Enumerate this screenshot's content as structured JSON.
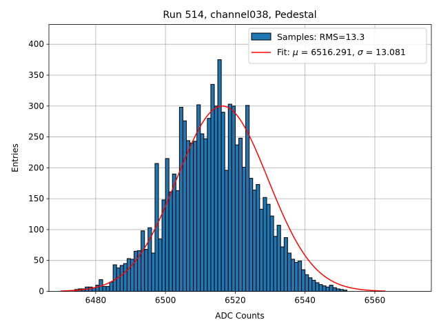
{
  "chart_data": {
    "type": "histogram",
    "title": "Run 514, channel038, Pedestal",
    "xlabel": "ADC Counts",
    "ylabel": "Entries",
    "xlim": [
      6466.6,
      6576.2
    ],
    "ylim": [
      0,
      432
    ],
    "grid": true,
    "legend_position": "top-right",
    "x_ticks": [
      6480,
      6500,
      6520,
      6540,
      6560
    ],
    "y_ticks": [
      0,
      50,
      100,
      150,
      200,
      250,
      300,
      350,
      400
    ],
    "bin_start": 6474,
    "bin_width": 1,
    "counts": [
      3,
      4,
      4,
      7,
      7,
      6,
      10,
      19,
      8,
      8,
      15,
      43,
      38,
      42,
      45,
      53,
      52,
      65,
      66,
      98,
      68,
      103,
      62,
      207,
      85,
      148,
      215,
      161,
      190,
      163,
      298,
      276,
      244,
      240,
      243,
      302,
      255,
      247,
      280,
      335,
      300,
      375,
      290,
      196,
      303,
      300,
      237,
      248,
      201,
      301,
      183,
      164,
      173,
      133,
      152,
      141,
      122,
      89,
      107,
      72,
      87,
      62,
      52,
      47,
      49,
      35,
      27,
      22,
      18,
      14,
      11,
      9,
      7,
      10,
      6,
      4,
      3,
      2
    ],
    "series": [
      {
        "name": "Samples: RMS=13.3",
        "kind": "histogram",
        "color": "#1f77b4"
      },
      {
        "name": "Fit: μ = 6516.291, σ = 13.081",
        "kind": "gaussian_fit",
        "color": "#ff0000"
      }
    ],
    "fit": {
      "mu": 6516.291,
      "sigma": 13.081,
      "amplitude": 300,
      "x_range": [
        6470,
        6563
      ]
    },
    "legend": {
      "samples_prefix": "Samples: RMS=13.3",
      "fit_prefix": "Fit: ",
      "fit_mu_symbol": "μ",
      "fit_mu_text": " = 6516.291, ",
      "fit_sigma_symbol": "σ",
      "fit_sigma_text": " = 13.081"
    }
  }
}
